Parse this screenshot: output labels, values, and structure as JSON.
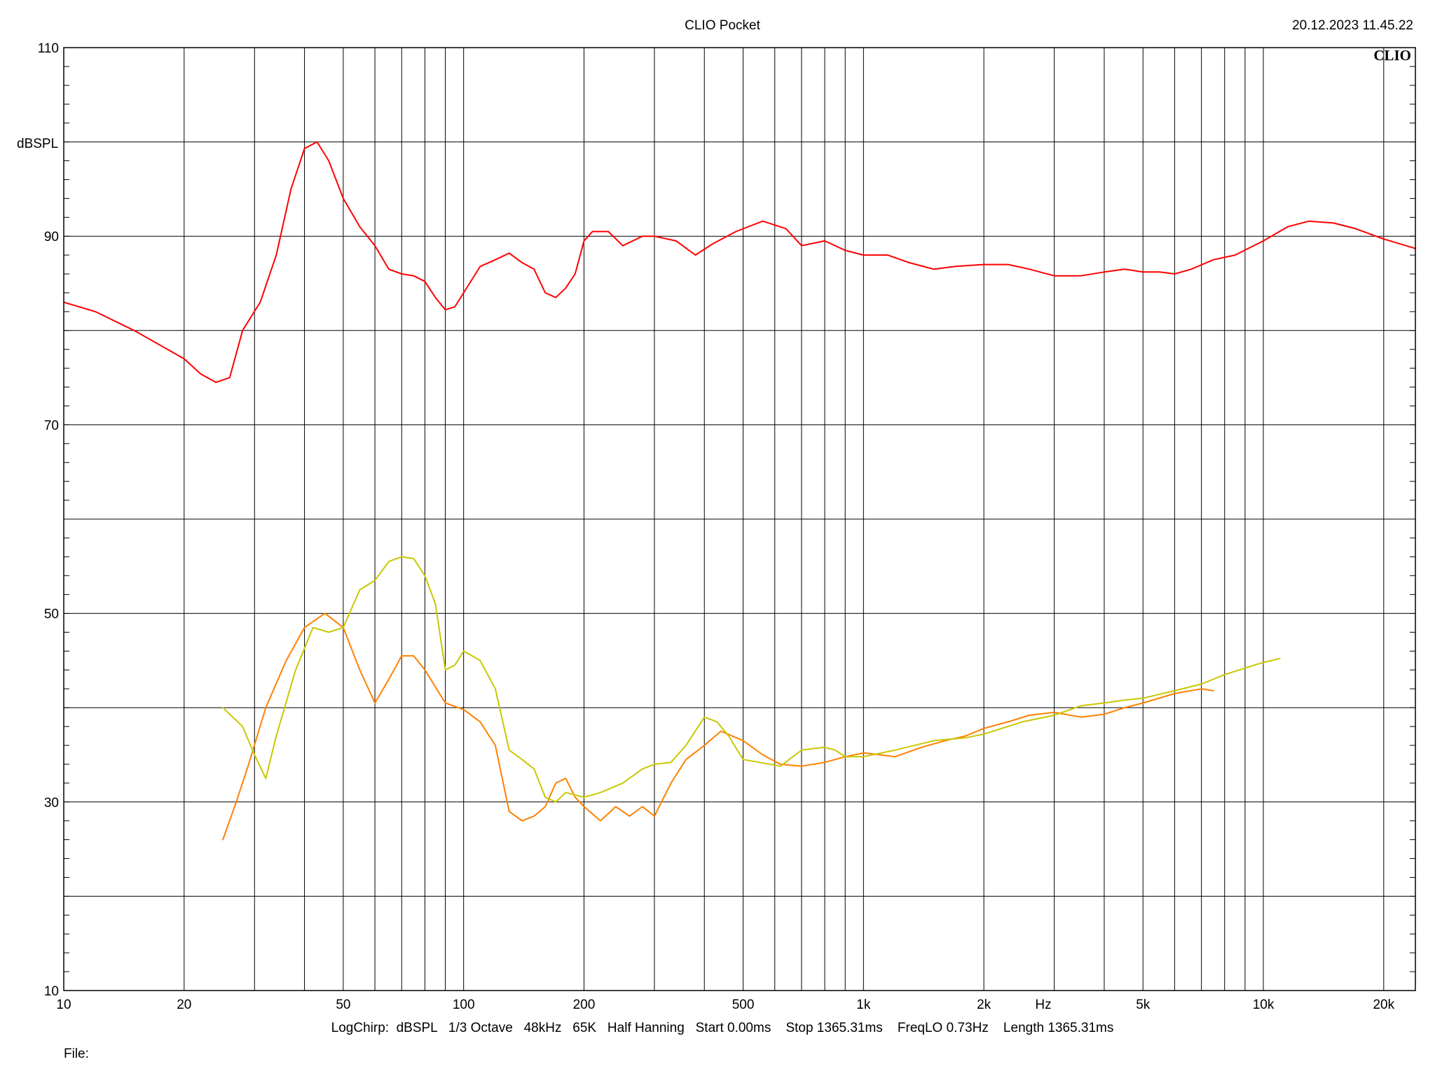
{
  "header": {
    "title": "CLIO Pocket",
    "timestamp": "20.12.2023 11.45.22",
    "logo": "CLIO"
  },
  "footer": {
    "settings": "LogChirp:  dBSPL   1/3 Octave   48kHz   65K   Half Hanning   Start 0.00ms    Stop 1365.31ms    FreqLO 0.73Hz    Length 1365.31ms",
    "file_label": "File:"
  },
  "chart_data": {
    "type": "line",
    "title": "CLIO Pocket",
    "xlabel": "Hz",
    "ylabel": "dBSPL",
    "x_scale": "log",
    "xlim": [
      10,
      24000
    ],
    "ylim": [
      10,
      110
    ],
    "grid": true,
    "x_ticks": [
      {
        "value": 10,
        "label": "10"
      },
      {
        "value": 20,
        "label": "20"
      },
      {
        "value": 50,
        "label": "50"
      },
      {
        "value": 100,
        "label": "100"
      },
      {
        "value": 200,
        "label": "200"
      },
      {
        "value": 500,
        "label": "500"
      },
      {
        "value": 1000,
        "label": "1k"
      },
      {
        "value": 2000,
        "label": "2k"
      },
      {
        "value": 5000,
        "label": "5k"
      },
      {
        "value": 10000,
        "label": "10k"
      },
      {
        "value": 20000,
        "label": "20k"
      }
    ],
    "y_ticks": [
      {
        "value": 10,
        "label": "10"
      },
      {
        "value": 30,
        "label": "30"
      },
      {
        "value": 50,
        "label": "50"
      },
      {
        "value": 70,
        "label": "70"
      },
      {
        "value": 90,
        "label": "90"
      },
      {
        "value": 110,
        "label": "110"
      }
    ],
    "series": [
      {
        "color": "#ff0000",
        "points": [
          [
            10,
            83
          ],
          [
            12,
            82
          ],
          [
            15,
            80
          ],
          [
            20,
            77
          ],
          [
            22,
            75.4
          ],
          [
            24,
            74.5
          ],
          [
            26,
            75
          ],
          [
            28,
            80
          ],
          [
            31,
            83
          ],
          [
            34,
            88
          ],
          [
            37,
            95
          ],
          [
            40,
            99.3
          ],
          [
            43,
            100
          ],
          [
            46,
            98
          ],
          [
            50,
            94
          ],
          [
            55,
            91
          ],
          [
            60,
            89
          ],
          [
            65,
            86.5
          ],
          [
            70,
            86
          ],
          [
            75,
            85.8
          ],
          [
            80,
            85.2
          ],
          [
            85,
            83.5
          ],
          [
            90,
            82.2
          ],
          [
            95,
            82.5
          ],
          [
            100,
            84
          ],
          [
            110,
            86.8
          ],
          [
            120,
            87.5
          ],
          [
            130,
            88.2
          ],
          [
            140,
            87.2
          ],
          [
            150,
            86.5
          ],
          [
            160,
            84
          ],
          [
            170,
            83.5
          ],
          [
            180,
            84.5
          ],
          [
            190,
            86
          ],
          [
            200,
            89.5
          ],
          [
            210,
            90.5
          ],
          [
            230,
            90.5
          ],
          [
            250,
            89
          ],
          [
            280,
            90
          ],
          [
            300,
            90
          ],
          [
            340,
            89.5
          ],
          [
            380,
            88
          ],
          [
            420,
            89.2
          ],
          [
            480,
            90.5
          ],
          [
            560,
            91.6
          ],
          [
            640,
            90.8
          ],
          [
            700,
            89
          ],
          [
            800,
            89.5
          ],
          [
            900,
            88.5
          ],
          [
            1000,
            88
          ],
          [
            1150,
            88
          ],
          [
            1300,
            87.2
          ],
          [
            1500,
            86.5
          ],
          [
            1700,
            86.8
          ],
          [
            2000,
            87
          ],
          [
            2300,
            87
          ],
          [
            2600,
            86.5
          ],
          [
            3000,
            85.8
          ],
          [
            3500,
            85.8
          ],
          [
            4000,
            86.2
          ],
          [
            4500,
            86.5
          ],
          [
            5000,
            86.2
          ],
          [
            5500,
            86.2
          ],
          [
            6000,
            86
          ],
          [
            6600,
            86.5
          ],
          [
            7500,
            87.5
          ],
          [
            8500,
            88
          ],
          [
            10000,
            89.5
          ],
          [
            11500,
            91
          ],
          [
            13000,
            91.6
          ],
          [
            15000,
            91.4
          ],
          [
            17000,
            90.8
          ],
          [
            20000,
            89.7
          ],
          [
            24000,
            88.7
          ]
        ]
      },
      {
        "color": "#ff8000",
        "points": [
          [
            25,
            26
          ],
          [
            27,
            30
          ],
          [
            29,
            34
          ],
          [
            32,
            40
          ],
          [
            36,
            45
          ],
          [
            40,
            48.5
          ],
          [
            45,
            50
          ],
          [
            50,
            48.5
          ],
          [
            55,
            44
          ],
          [
            60,
            40.5
          ],
          [
            65,
            43
          ],
          [
            70,
            45.5
          ],
          [
            75,
            45.5
          ],
          [
            80,
            44
          ],
          [
            90,
            40.5
          ],
          [
            100,
            39.8
          ],
          [
            110,
            38.5
          ],
          [
            120,
            36
          ],
          [
            130,
            29
          ],
          [
            140,
            28
          ],
          [
            150,
            28.5
          ],
          [
            160,
            29.5
          ],
          [
            170,
            32
          ],
          [
            180,
            32.5
          ],
          [
            190,
            30.5
          ],
          [
            200,
            29.5
          ],
          [
            220,
            28
          ],
          [
            240,
            29.5
          ],
          [
            260,
            28.5
          ],
          [
            280,
            29.5
          ],
          [
            300,
            28.5
          ],
          [
            330,
            32
          ],
          [
            360,
            34.5
          ],
          [
            400,
            36
          ],
          [
            440,
            37.5
          ],
          [
            500,
            36.5
          ],
          [
            560,
            35
          ],
          [
            620,
            34
          ],
          [
            700,
            33.8
          ],
          [
            800,
            34.2
          ],
          [
            900,
            34.8
          ],
          [
            1000,
            35.2
          ],
          [
            1100,
            35
          ],
          [
            1200,
            34.8
          ],
          [
            1400,
            35.8
          ],
          [
            1600,
            36.5
          ],
          [
            1800,
            37
          ],
          [
            2000,
            37.8
          ],
          [
            2300,
            38.5
          ],
          [
            2600,
            39.2
          ],
          [
            3000,
            39.5
          ],
          [
            3500,
            39
          ],
          [
            4000,
            39.3
          ],
          [
            4500,
            40
          ],
          [
            5000,
            40.5
          ],
          [
            6000,
            41.5
          ],
          [
            7000,
            42
          ],
          [
            7500,
            41.8
          ]
        ]
      },
      {
        "color": "#c8c800",
        "points": [
          [
            25,
            40
          ],
          [
            28,
            38
          ],
          [
            30,
            35
          ],
          [
            32,
            32.5
          ],
          [
            34,
            37
          ],
          [
            38,
            44
          ],
          [
            42,
            48.5
          ],
          [
            46,
            48
          ],
          [
            50,
            48.5
          ],
          [
            55,
            52.5
          ],
          [
            60,
            53.5
          ],
          [
            65,
            55.5
          ],
          [
            70,
            56
          ],
          [
            75,
            55.8
          ],
          [
            80,
            54
          ],
          [
            85,
            51
          ],
          [
            90,
            44
          ],
          [
            95,
            44.5
          ],
          [
            100,
            46
          ],
          [
            110,
            45
          ],
          [
            120,
            42
          ],
          [
            130,
            35.5
          ],
          [
            140,
            34.5
          ],
          [
            150,
            33.5
          ],
          [
            160,
            30.5
          ],
          [
            170,
            30
          ],
          [
            180,
            31
          ],
          [
            200,
            30.5
          ],
          [
            220,
            31
          ],
          [
            250,
            32
          ],
          [
            280,
            33.5
          ],
          [
            300,
            34
          ],
          [
            330,
            34.2
          ],
          [
            360,
            36
          ],
          [
            400,
            39
          ],
          [
            430,
            38.5
          ],
          [
            460,
            37
          ],
          [
            500,
            34.5
          ],
          [
            550,
            34.2
          ],
          [
            620,
            33.8
          ],
          [
            700,
            35.5
          ],
          [
            800,
            35.8
          ],
          [
            850,
            35.5
          ],
          [
            900,
            34.8
          ],
          [
            1000,
            34.8
          ],
          [
            1200,
            35.5
          ],
          [
            1500,
            36.5
          ],
          [
            1800,
            36.8
          ],
          [
            2000,
            37.2
          ],
          [
            2500,
            38.5
          ],
          [
            3000,
            39.2
          ],
          [
            3500,
            40.2
          ],
          [
            4000,
            40.5
          ],
          [
            4500,
            40.8
          ],
          [
            5000,
            41
          ],
          [
            6000,
            41.8
          ],
          [
            7000,
            42.5
          ],
          [
            8000,
            43.5
          ],
          [
            9000,
            44.2
          ],
          [
            10000,
            44.8
          ],
          [
            11000,
            45.2
          ]
        ]
      }
    ]
  }
}
